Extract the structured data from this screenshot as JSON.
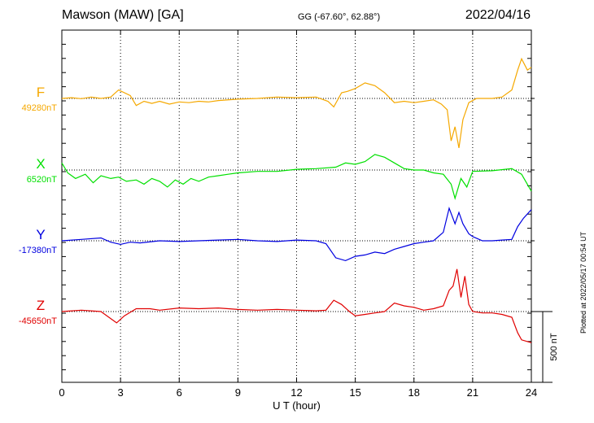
{
  "header": {
    "station": "Mawson (MAW)  [GA]",
    "coords": "GG (-67.60°,  62.88°)",
    "date": "2022/04/16"
  },
  "footer": {
    "plotted": "Plotted at 2022/05/17 00:54 UT"
  },
  "chart_data": {
    "type": "line",
    "xlabel": "U T (hour)",
    "x_ticks": [
      0,
      3,
      6,
      9,
      12,
      15,
      18,
      21,
      24
    ],
    "xlim": [
      0,
      24
    ],
    "grid": "vertical dotted lines at each 3 hours",
    "scale_bar_label": "500 nT",
    "scale_bar_nT": 500,
    "colors": {
      "F": "#f5a800",
      "X": "#00e000",
      "Y": "#0000e0",
      "Z": "#e00000"
    },
    "series": [
      {
        "name": "F",
        "baseline_label": "49280nT",
        "baseline_nT": 49280,
        "points": [
          [
            0,
            0
          ],
          [
            0.5,
            5
          ],
          [
            1,
            -2
          ],
          [
            1.5,
            10
          ],
          [
            2,
            0
          ],
          [
            2.5,
            10
          ],
          [
            2.9,
            60
          ],
          [
            3.5,
            20
          ],
          [
            3.8,
            -50
          ],
          [
            4.2,
            -20
          ],
          [
            4.6,
            -35
          ],
          [
            5,
            -20
          ],
          [
            5.5,
            -40
          ],
          [
            6,
            -25
          ],
          [
            6.5,
            -30
          ],
          [
            7,
            -20
          ],
          [
            7.5,
            -25
          ],
          [
            8,
            -15
          ],
          [
            9,
            -5
          ],
          [
            10,
            0
          ],
          [
            11,
            10
          ],
          [
            12,
            5
          ],
          [
            13,
            10
          ],
          [
            13.6,
            -20
          ],
          [
            13.9,
            -60
          ],
          [
            14.3,
            40
          ],
          [
            14.6,
            50
          ],
          [
            15,
            70
          ],
          [
            15.5,
            110
          ],
          [
            16,
            90
          ],
          [
            16.5,
            40
          ],
          [
            17,
            -30
          ],
          [
            17.5,
            -20
          ],
          [
            18,
            -30
          ],
          [
            18.5,
            -20
          ],
          [
            19,
            -10
          ],
          [
            19.4,
            -40
          ],
          [
            19.7,
            -80
          ],
          [
            19.9,
            -300
          ],
          [
            20.1,
            -200
          ],
          [
            20.3,
            -350
          ],
          [
            20.5,
            -150
          ],
          [
            20.8,
            -30
          ],
          [
            21.2,
            0
          ],
          [
            22,
            0
          ],
          [
            22.5,
            10
          ],
          [
            23,
            60
          ],
          [
            23.3,
            200
          ],
          [
            23.5,
            280
          ],
          [
            23.8,
            200
          ],
          [
            24,
            220
          ]
        ]
      },
      {
        "name": "X",
        "baseline_label": "6520nT",
        "baseline_nT": 6520,
        "points": [
          [
            0,
            50
          ],
          [
            0.3,
            -20
          ],
          [
            0.7,
            -60
          ],
          [
            1.2,
            -30
          ],
          [
            1.6,
            -90
          ],
          [
            2,
            -40
          ],
          [
            2.5,
            -60
          ],
          [
            2.9,
            -50
          ],
          [
            3.3,
            -80
          ],
          [
            3.8,
            -70
          ],
          [
            4.2,
            -100
          ],
          [
            4.6,
            -60
          ],
          [
            5,
            -80
          ],
          [
            5.4,
            -120
          ],
          [
            5.8,
            -70
          ],
          [
            6.2,
            -100
          ],
          [
            6.6,
            -60
          ],
          [
            7,
            -80
          ],
          [
            7.5,
            -50
          ],
          [
            8,
            -40
          ],
          [
            8.5,
            -30
          ],
          [
            9,
            -20
          ],
          [
            10,
            -10
          ],
          [
            11,
            -10
          ],
          [
            12,
            5
          ],
          [
            13,
            10
          ],
          [
            14,
            20
          ],
          [
            14.5,
            50
          ],
          [
            15,
            40
          ],
          [
            15.5,
            60
          ],
          [
            16,
            110
          ],
          [
            16.5,
            90
          ],
          [
            17,
            50
          ],
          [
            17.5,
            10
          ],
          [
            18,
            0
          ],
          [
            18.5,
            0
          ],
          [
            19,
            -20
          ],
          [
            19.5,
            -30
          ],
          [
            19.9,
            -100
          ],
          [
            20.1,
            -200
          ],
          [
            20.4,
            -60
          ],
          [
            20.7,
            -120
          ],
          [
            21,
            -10
          ],
          [
            22,
            -5
          ],
          [
            23,
            10
          ],
          [
            23.5,
            -30
          ],
          [
            24,
            -150
          ]
        ]
      },
      {
        "name": "Y",
        "baseline_label": "-17380nT",
        "baseline_nT": -17380,
        "points": [
          [
            0,
            0
          ],
          [
            1,
            10
          ],
          [
            2,
            20
          ],
          [
            2.5,
            -10
          ],
          [
            3,
            -25
          ],
          [
            3.5,
            -10
          ],
          [
            4,
            -15
          ],
          [
            5,
            0
          ],
          [
            6,
            -5
          ],
          [
            7,
            0
          ],
          [
            8,
            5
          ],
          [
            9,
            10
          ],
          [
            10,
            0
          ],
          [
            11,
            -5
          ],
          [
            12,
            5
          ],
          [
            13,
            0
          ],
          [
            13.5,
            -20
          ],
          [
            14,
            -120
          ],
          [
            14.5,
            -140
          ],
          [
            15,
            -110
          ],
          [
            15.5,
            -100
          ],
          [
            16,
            -80
          ],
          [
            16.5,
            -90
          ],
          [
            17,
            -60
          ],
          [
            17.5,
            -40
          ],
          [
            18,
            -20
          ],
          [
            18.5,
            -10
          ],
          [
            19,
            0
          ],
          [
            19.5,
            60
          ],
          [
            19.8,
            230
          ],
          [
            20.1,
            120
          ],
          [
            20.3,
            200
          ],
          [
            20.5,
            120
          ],
          [
            20.8,
            50
          ],
          [
            21,
            30
          ],
          [
            21.5,
            0
          ],
          [
            22,
            0
          ],
          [
            22.5,
            5
          ],
          [
            23,
            10
          ],
          [
            23.3,
            100
          ],
          [
            23.6,
            160
          ],
          [
            24,
            220
          ]
        ]
      },
      {
        "name": "Z",
        "baseline_label": "-45650nT",
        "baseline_nT": -45650,
        "points": [
          [
            0,
            0
          ],
          [
            1,
            10
          ],
          [
            2,
            0
          ],
          [
            2.8,
            -80
          ],
          [
            3.2,
            -30
          ],
          [
            3.8,
            20
          ],
          [
            4.5,
            20
          ],
          [
            5,
            10
          ],
          [
            6,
            25
          ],
          [
            7,
            20
          ],
          [
            8,
            25
          ],
          [
            9,
            15
          ],
          [
            10,
            10
          ],
          [
            11,
            15
          ],
          [
            12,
            10
          ],
          [
            13,
            5
          ],
          [
            13.5,
            10
          ],
          [
            13.9,
            80
          ],
          [
            14.3,
            50
          ],
          [
            14.7,
            0
          ],
          [
            15,
            -30
          ],
          [
            15.5,
            -20
          ],
          [
            16,
            -10
          ],
          [
            16.5,
            0
          ],
          [
            17,
            60
          ],
          [
            17.5,
            40
          ],
          [
            18,
            30
          ],
          [
            18.5,
            10
          ],
          [
            19,
            20
          ],
          [
            19.5,
            40
          ],
          [
            19.8,
            150
          ],
          [
            20,
            180
          ],
          [
            20.2,
            300
          ],
          [
            20.4,
            100
          ],
          [
            20.6,
            250
          ],
          [
            20.8,
            50
          ],
          [
            21,
            0
          ],
          [
            21.5,
            -10
          ],
          [
            22,
            -10
          ],
          [
            22.5,
            -20
          ],
          [
            23,
            -40
          ],
          [
            23.3,
            -150
          ],
          [
            23.5,
            -200
          ],
          [
            24,
            -220
          ]
        ]
      }
    ]
  }
}
